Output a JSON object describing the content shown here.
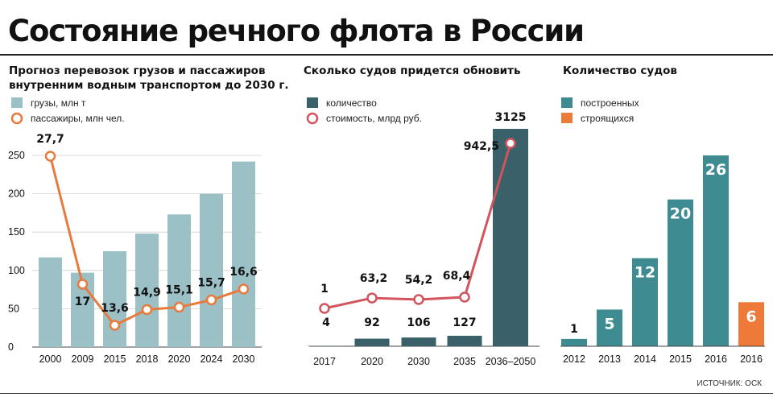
{
  "title": "Состояние речного флота в России",
  "source": "ИСТОЧНИК: ОСК",
  "colors": {
    "teal_light": "#9bc0c6",
    "orange": "#e87a3e",
    "dark_teal": "#3a6169",
    "red_line": "#d2555e",
    "teal": "#3e8c92",
    "orange_building": "#ee7a3a"
  },
  "chart_data": [
    {
      "type": "bar",
      "title_line1": "Прогноз перевозок грузов и пассажиров",
      "title_line2": "внутренним водным транспортом до 2030 г.",
      "categories": [
        "2000",
        "2009",
        "2015",
        "2018",
        "2020",
        "2024",
        "2030"
      ],
      "ylim": [
        0,
        250
      ],
      "yticks": [
        "0",
        "50",
        "100",
        "150",
        "200",
        "250"
      ],
      "grid": true,
      "legend": "top-left",
      "series": [
        {
          "name": "грузы, млн т",
          "type": "bar",
          "values": [
            117,
            97,
            125,
            148,
            173,
            200,
            242
          ]
        },
        {
          "name": "пассажиры, млн чел.",
          "type": "line",
          "values": [
            27.7,
            17,
            13.6,
            14.9,
            15.1,
            15.7,
            16.6
          ],
          "labels": [
            "27,7",
            "17",
            "13,6",
            "14,9",
            "15,1",
            "15,7",
            "16,6"
          ]
        }
      ]
    },
    {
      "type": "bar",
      "title": "Сколько судов придется обновить",
      "categories": [
        "2017",
        "2020",
        "2030",
        "2035",
        "2036–2050"
      ],
      "legend": "top-left",
      "series": [
        {
          "name": "количество",
          "type": "bar",
          "values": [
            4,
            92,
            106,
            127,
            3125
          ],
          "labels": [
            "4",
            "92",
            "106",
            "127",
            "3125"
          ]
        },
        {
          "name": "стоимость, млрд руб.",
          "type": "line",
          "values": [
            1,
            63.2,
            54.2,
            68.4,
            942.5
          ],
          "labels": [
            "1",
            "63,2",
            "54,2",
            "68,4",
            "942,5"
          ]
        }
      ]
    },
    {
      "type": "bar",
      "title": "Количество судов",
      "categories": [
        "2012",
        "2013",
        "2014",
        "2015",
        "2016",
        "2016"
      ],
      "legend": "top-left",
      "series": [
        {
          "name": "построенных",
          "values": [
            1,
            5,
            12,
            20,
            26,
            null
          ]
        },
        {
          "name": "строящихся",
          "values": [
            null,
            null,
            null,
            null,
            null,
            6
          ]
        }
      ],
      "labels": [
        "1",
        "5",
        "12",
        "20",
        "26",
        "6"
      ]
    }
  ]
}
